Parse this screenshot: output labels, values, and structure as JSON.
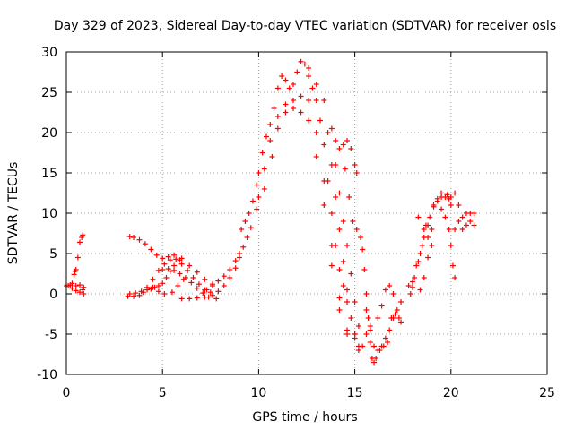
{
  "chart_data": {
    "type": "scatter",
    "title": "Day 329 of 2023, Sidereal Day-to-day VTEC variation (SDTVAR) for receiver osls",
    "xlabel": "GPS time / hours",
    "ylabel": "SDTVAR / TECUs",
    "xlim": [
      0,
      25
    ],
    "ylim": [
      -10,
      30
    ],
    "xticks": [
      0,
      5,
      10,
      15,
      20,
      25
    ],
    "yticks": [
      -10,
      -5,
      0,
      5,
      10,
      15,
      20,
      25,
      30
    ],
    "grid": true,
    "marker": "plus",
    "color": "#ff0000",
    "series": [
      {
        "values": [
          [
            0.0,
            1.0
          ],
          [
            0.1,
            1.0
          ],
          [
            0.2,
            1.1
          ],
          [
            0.3,
            1.3
          ],
          [
            0.4,
            2.4
          ],
          [
            0.45,
            2.8
          ],
          [
            0.5,
            3.0
          ],
          [
            0.6,
            4.5
          ],
          [
            0.7,
            6.4
          ],
          [
            0.8,
            7.0
          ],
          [
            0.85,
            7.3
          ],
          [
            0.3,
            0.7
          ],
          [
            0.5,
            0.4
          ],
          [
            0.7,
            0.2
          ],
          [
            0.85,
            0.5
          ],
          [
            0.9,
            0.0
          ],
          [
            0.5,
            1.0
          ],
          [
            0.7,
            1.1
          ],
          [
            0.9,
            0.8
          ],
          [
            3.2,
            -0.3
          ],
          [
            3.5,
            -0.3
          ],
          [
            3.8,
            -0.2
          ],
          [
            4.0,
            0.2
          ],
          [
            4.2,
            0.5
          ],
          [
            4.4,
            0.6
          ],
          [
            4.6,
            0.8
          ],
          [
            4.8,
            1.0
          ],
          [
            5.0,
            1.3
          ],
          [
            5.2,
            2.0
          ],
          [
            5.4,
            2.8
          ],
          [
            5.6,
            3.5
          ],
          [
            5.9,
            4.2
          ],
          [
            3.3,
            7.1
          ],
          [
            3.5,
            7.0
          ],
          [
            3.8,
            6.7
          ],
          [
            4.1,
            6.2
          ],
          [
            4.4,
            5.5
          ],
          [
            4.7,
            4.8
          ],
          [
            5.0,
            4.4
          ],
          [
            5.3,
            4.6
          ],
          [
            5.6,
            4.8
          ],
          [
            6.0,
            4.4
          ],
          [
            6.4,
            3.5
          ],
          [
            6.8,
            2.7
          ],
          [
            7.2,
            1.8
          ],
          [
            7.6,
            1.2
          ],
          [
            3.3,
            0.0
          ],
          [
            3.6,
            0.1
          ],
          [
            3.9,
            0.3
          ],
          [
            4.2,
            0.8
          ],
          [
            4.5,
            1.8
          ],
          [
            4.8,
            2.9
          ],
          [
            5.1,
            3.7
          ],
          [
            5.4,
            4.2
          ],
          [
            5.7,
            4.3
          ],
          [
            6.0,
            3.7
          ],
          [
            6.3,
            2.9
          ],
          [
            6.6,
            2.0
          ],
          [
            6.9,
            1.2
          ],
          [
            7.2,
            0.5
          ],
          [
            7.5,
            0.2
          ],
          [
            5.0,
            3.0
          ],
          [
            5.3,
            3.1
          ],
          [
            5.6,
            2.9
          ],
          [
            5.9,
            2.5
          ],
          [
            6.2,
            2.0
          ],
          [
            6.5,
            1.4
          ],
          [
            6.8,
            0.7
          ],
          [
            7.1,
            0.1
          ],
          [
            7.4,
            -0.4
          ],
          [
            7.8,
            -0.6
          ],
          [
            4.5,
            0.8
          ],
          [
            4.8,
            0.3
          ],
          [
            5.1,
            0.0
          ],
          [
            5.5,
            0.2
          ],
          [
            5.8,
            1.0
          ],
          [
            6.1,
            1.8
          ],
          [
            6.0,
            -0.6
          ],
          [
            6.4,
            -0.6
          ],
          [
            6.8,
            -0.5
          ],
          [
            7.2,
            -0.4
          ],
          [
            7.6,
            -0.2
          ],
          [
            7.9,
            0.3
          ],
          [
            8.2,
            1.0
          ],
          [
            8.5,
            2.0
          ],
          [
            8.8,
            3.2
          ],
          [
            9.0,
            4.5
          ],
          [
            9.2,
            5.8
          ],
          [
            9.4,
            7.0
          ],
          [
            9.6,
            8.2
          ],
          [
            7.3,
            0.5
          ],
          [
            7.6,
            1.0
          ],
          [
            7.9,
            1.6
          ],
          [
            8.2,
            2.2
          ],
          [
            8.5,
            3.0
          ],
          [
            8.8,
            4.1
          ],
          [
            9.0,
            5.0
          ],
          [
            9.1,
            8.0
          ],
          [
            9.3,
            9.0
          ],
          [
            9.5,
            10.0
          ],
          [
            9.7,
            11.5
          ],
          [
            9.9,
            13.5
          ],
          [
            10.0,
            15.0
          ],
          [
            10.2,
            17.5
          ],
          [
            10.4,
            19.5
          ],
          [
            10.6,
            21.0
          ],
          [
            10.8,
            23.0
          ],
          [
            11.0,
            25.5
          ],
          [
            11.2,
            27.0
          ],
          [
            11.4,
            26.5
          ],
          [
            11.6,
            25.5
          ],
          [
            11.8,
            26.0
          ],
          [
            12.0,
            27.5
          ],
          [
            12.2,
            28.8
          ],
          [
            12.4,
            28.5
          ],
          [
            12.6,
            27.0
          ],
          [
            12.8,
            25.5
          ],
          [
            13.0,
            24.0
          ],
          [
            13.2,
            21.5
          ],
          [
            13.4,
            18.5
          ],
          [
            13.6,
            14.0
          ],
          [
            13.8,
            10.0
          ],
          [
            14.0,
            6.0
          ],
          [
            14.2,
            3.0
          ],
          [
            14.4,
            1.0
          ],
          [
            14.6,
            -1.0
          ],
          [
            10.0,
            12.0
          ],
          [
            10.3,
            15.5
          ],
          [
            10.6,
            19.0
          ],
          [
            11.0,
            22.0
          ],
          [
            11.4,
            23.5
          ],
          [
            11.8,
            24.0
          ],
          [
            12.2,
            24.5
          ],
          [
            12.6,
            24.0
          ],
          [
            13.0,
            20.0
          ],
          [
            13.4,
            14.0
          ],
          [
            13.8,
            6.0
          ],
          [
            14.2,
            -0.5
          ],
          [
            14.6,
            -4.5
          ],
          [
            15.0,
            -5.0
          ],
          [
            9.9,
            10.5
          ],
          [
            10.3,
            13.0
          ],
          [
            10.7,
            17.0
          ],
          [
            11.0,
            20.5
          ],
          [
            11.4,
            22.5
          ],
          [
            11.8,
            23.0
          ],
          [
            12.2,
            22.5
          ],
          [
            12.6,
            21.5
          ],
          [
            13.0,
            17.0
          ],
          [
            13.4,
            11.0
          ],
          [
            13.8,
            3.5
          ],
          [
            14.2,
            -2.0
          ],
          [
            14.6,
            -5.0
          ],
          [
            12.6,
            28.0
          ],
          [
            13.0,
            26.0
          ],
          [
            13.4,
            24.0
          ],
          [
            13.8,
            20.5
          ],
          [
            14.0,
            19.0
          ],
          [
            14.2,
            18.0
          ],
          [
            14.4,
            18.5
          ],
          [
            14.6,
            19.0
          ],
          [
            14.8,
            18.0
          ],
          [
            15.0,
            16.0
          ],
          [
            15.1,
            15.0
          ],
          [
            13.6,
            20.0
          ],
          [
            13.8,
            16.0
          ],
          [
            14.0,
            12.0
          ],
          [
            14.2,
            8.0
          ],
          [
            14.4,
            4.0
          ],
          [
            14.6,
            0.5
          ],
          [
            14.8,
            -3.0
          ],
          [
            15.0,
            -5.5
          ],
          [
            15.2,
            -6.5
          ],
          [
            14.0,
            16.0
          ],
          [
            14.2,
            12.5
          ],
          [
            14.4,
            9.0
          ],
          [
            14.6,
            6.0
          ],
          [
            14.8,
            2.5
          ],
          [
            15.0,
            -1.0
          ],
          [
            15.2,
            -4.0
          ],
          [
            14.5,
            15.5
          ],
          [
            14.7,
            12.0
          ],
          [
            14.9,
            9.0
          ],
          [
            15.1,
            8.0
          ],
          [
            15.3,
            7.0
          ],
          [
            15.0,
            -5.0
          ],
          [
            15.2,
            -7.0
          ],
          [
            15.4,
            -6.5
          ],
          [
            15.6,
            -5.0
          ],
          [
            15.8,
            -4.0
          ],
          [
            15.4,
            5.5
          ],
          [
            15.5,
            3.0
          ],
          [
            15.6,
            0.0
          ],
          [
            15.7,
            -3.0
          ],
          [
            15.8,
            -6.0
          ],
          [
            15.9,
            -8.0
          ],
          [
            16.0,
            -8.5
          ],
          [
            16.1,
            -8.0
          ],
          [
            16.3,
            -7.0
          ],
          [
            16.5,
            -6.5
          ],
          [
            16.7,
            -6.0
          ],
          [
            15.6,
            -2.0
          ],
          [
            15.8,
            -4.5
          ],
          [
            16.0,
            -6.5
          ],
          [
            16.2,
            -7.0
          ],
          [
            16.4,
            -6.5
          ],
          [
            16.6,
            -5.5
          ],
          [
            16.8,
            -4.5
          ],
          [
            17.0,
            -3.0
          ],
          [
            17.2,
            -2.0
          ],
          [
            17.4,
            -1.0
          ],
          [
            16.2,
            -3.0
          ],
          [
            16.4,
            -1.5
          ],
          [
            16.6,
            0.5
          ],
          [
            16.8,
            1.0
          ],
          [
            17.0,
            0.0
          ],
          [
            16.9,
            -3.0
          ],
          [
            17.1,
            -2.5
          ],
          [
            17.3,
            -3.0
          ],
          [
            17.4,
            -3.5
          ],
          [
            17.8,
            1.0
          ],
          [
            18.0,
            0.8
          ],
          [
            17.9,
            0.0
          ],
          [
            18.1,
            2.0
          ],
          [
            18.3,
            4.0
          ],
          [
            18.5,
            6.0
          ],
          [
            18.7,
            8.5
          ],
          [
            18.9,
            9.5
          ],
          [
            19.1,
            11.0
          ],
          [
            19.3,
            11.8
          ],
          [
            19.5,
            12.0
          ],
          [
            19.7,
            12.0
          ],
          [
            19.9,
            11.8
          ],
          [
            18.0,
            1.5
          ],
          [
            18.2,
            3.5
          ],
          [
            18.4,
            5.0
          ],
          [
            18.6,
            7.0
          ],
          [
            18.8,
            8.5
          ],
          [
            18.3,
            9.5
          ],
          [
            18.6,
            8.0
          ],
          [
            18.8,
            7.0
          ],
          [
            19.0,
            6.0
          ],
          [
            18.4,
            0.5
          ],
          [
            18.6,
            2.0
          ],
          [
            18.8,
            4.5
          ],
          [
            19.0,
            8.0
          ],
          [
            19.1,
            10.8
          ],
          [
            19.3,
            11.5
          ],
          [
            19.5,
            12.5
          ],
          [
            19.8,
            12.3
          ],
          [
            20.0,
            11.0
          ],
          [
            19.5,
            10.5
          ],
          [
            19.7,
            9.5
          ],
          [
            19.9,
            8.0
          ],
          [
            20.0,
            6.0
          ],
          [
            20.1,
            3.5
          ],
          [
            20.2,
            2.0
          ],
          [
            20.0,
            12.0
          ],
          [
            20.2,
            12.5
          ],
          [
            20.4,
            11.0
          ],
          [
            20.6,
            9.5
          ],
          [
            20.8,
            10.0
          ],
          [
            21.0,
            9.0
          ],
          [
            21.2,
            8.5
          ],
          [
            20.2,
            8.0
          ],
          [
            20.4,
            9.0
          ],
          [
            20.6,
            8.0
          ],
          [
            20.8,
            8.5
          ],
          [
            21.0,
            10.0
          ],
          [
            21.2,
            10.0
          ]
        ]
      }
    ]
  }
}
